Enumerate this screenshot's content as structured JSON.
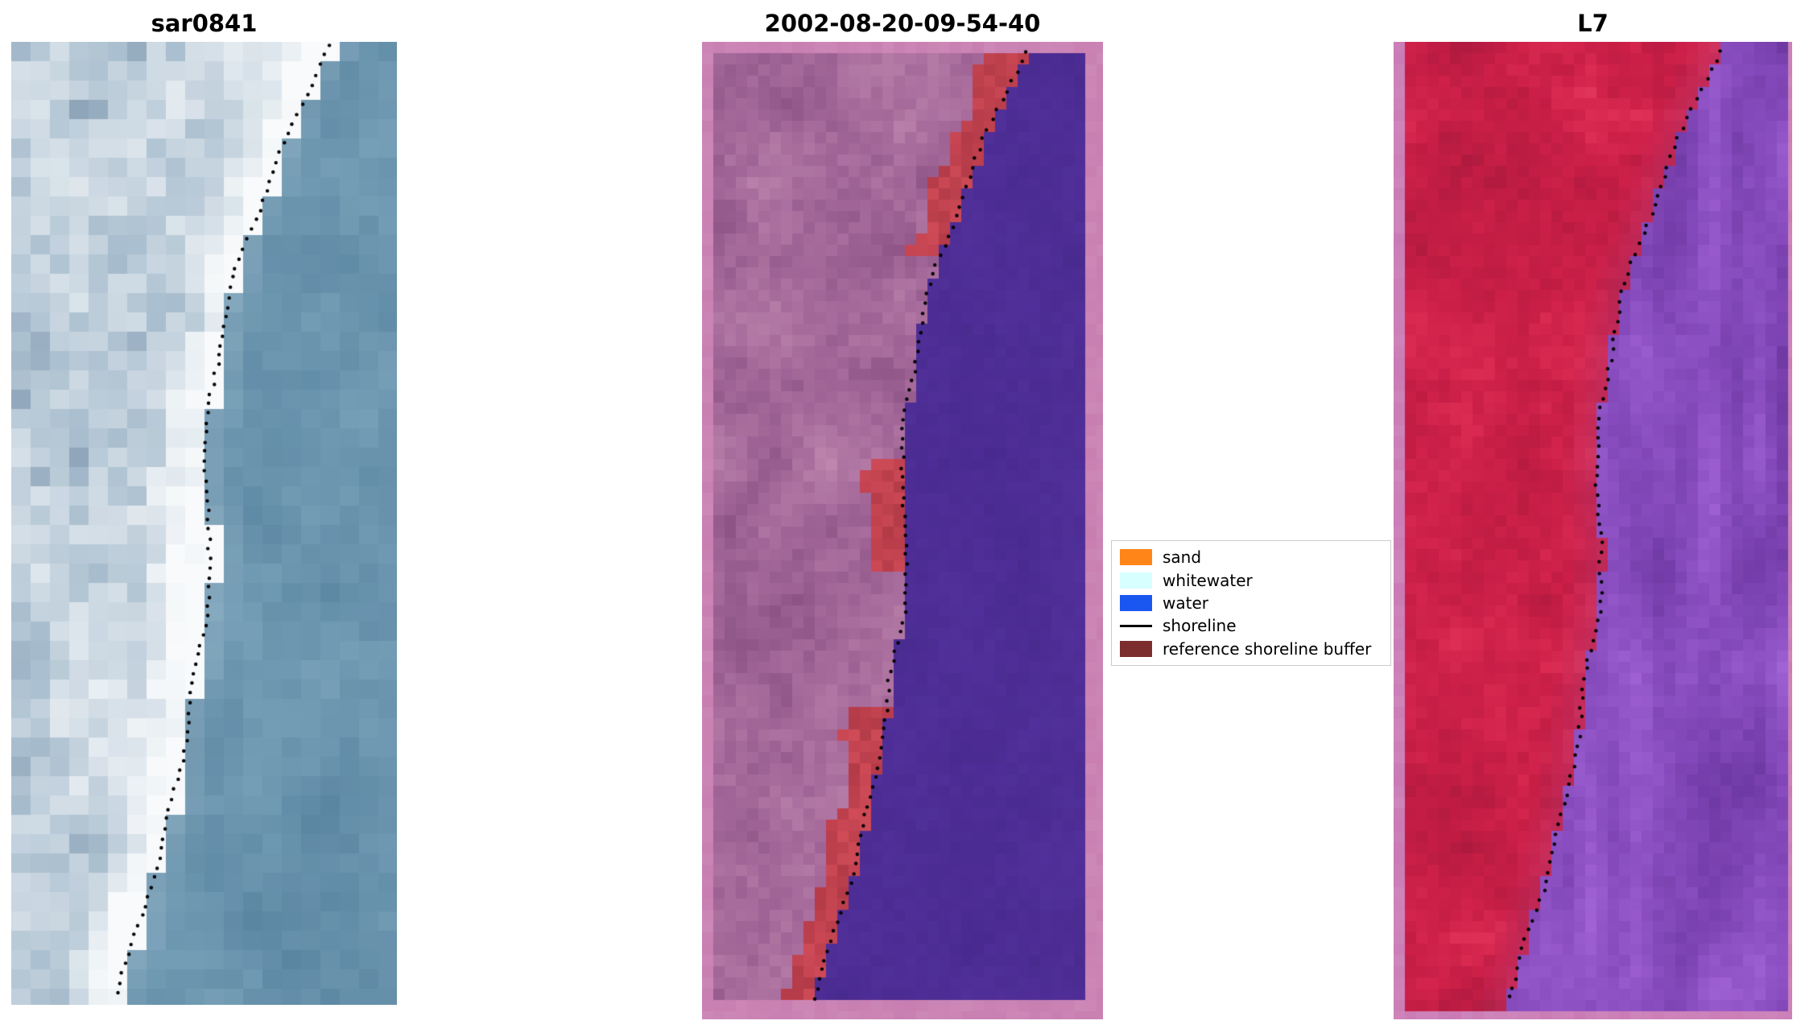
{
  "figure": {
    "background": "#ffffff",
    "panels": [
      {
        "title": "sar0841"
      },
      {
        "title": "2002-08-20-09-54-40"
      },
      {
        "title": "L7"
      }
    ],
    "legend": {
      "items": [
        {
          "label": "sand",
          "color": "#ff8519",
          "type": "patch"
        },
        {
          "label": "whitewater",
          "color": "#d8ffff",
          "type": "patch"
        },
        {
          "label": "water",
          "color": "#1a56f0",
          "type": "patch"
        },
        {
          "label": "shoreline",
          "color": "#000000",
          "type": "line"
        },
        {
          "label": "reference shoreline buffer",
          "color": "#7c2d2d",
          "type": "patch"
        }
      ]
    }
  },
  "chart_data": {
    "type": "heatmap",
    "subtype": "satellite-image-triptych",
    "title": "",
    "panels": [
      {
        "title": "sar0841",
        "content": "coastal SAR/optical image: bright surf and beach on the left, steel-blue ocean on the right, black dotted detected shoreline along the land/water boundary"
      },
      {
        "title": "2002-08-20-09-54-40",
        "content": "classified scene overlaid with mauve reference shoreline buffer: red sand detections hugging the shoreline, dark indigo water on the right, pink image border, black dotted detected shoreline"
      },
      {
        "title": "L7",
        "content": "Landsat 7 false-colour image: land rendered red, water rendered purple, pink image border, black dotted detected shoreline"
      }
    ],
    "legend": {
      "position": "center-right",
      "entries": [
        {
          "label": "sand",
          "color": "#ff8519",
          "marker": "patch"
        },
        {
          "label": "whitewater",
          "color": "#d8ffff",
          "marker": "patch"
        },
        {
          "label": "water",
          "color": "#1a56f0",
          "marker": "patch"
        },
        {
          "label": "shoreline",
          "color": "#000000",
          "marker": "line"
        },
        {
          "label": "reference shoreline buffer",
          "color": "#7c2d2d",
          "marker": "patch"
        }
      ]
    },
    "shoreline_path_norm": [
      [
        0.0,
        0.835
      ],
      [
        0.06,
        0.76
      ],
      [
        0.1,
        0.72
      ],
      [
        0.16,
        0.66
      ],
      [
        0.23,
        0.595
      ],
      [
        0.3,
        0.55
      ],
      [
        0.38,
        0.52
      ],
      [
        0.45,
        0.5
      ],
      [
        0.52,
        0.525
      ],
      [
        0.58,
        0.515
      ],
      [
        0.63,
        0.49
      ],
      [
        0.7,
        0.465
      ],
      [
        0.78,
        0.43
      ],
      [
        0.85,
        0.385
      ],
      [
        0.93,
        0.325
      ],
      [
        1.0,
        0.27
      ]
    ],
    "axes": "none (image panels, no ticks)"
  },
  "render": {
    "shore_path": [
      [
        0.0,
        0.835
      ],
      [
        0.06,
        0.76
      ],
      [
        0.1,
        0.72
      ],
      [
        0.16,
        0.66
      ],
      [
        0.23,
        0.595
      ],
      [
        0.3,
        0.55
      ],
      [
        0.38,
        0.52
      ],
      [
        0.45,
        0.5
      ],
      [
        0.52,
        0.525
      ],
      [
        0.58,
        0.515
      ],
      [
        0.63,
        0.49
      ],
      [
        0.7,
        0.465
      ],
      [
        0.78,
        0.43
      ],
      [
        0.85,
        0.385
      ],
      [
        0.93,
        0.325
      ],
      [
        1.0,
        0.27
      ]
    ],
    "dot": {
      "color": "#000000",
      "radius": 2.2,
      "step": 12
    },
    "panels": [
      {
        "id": "sar",
        "type": "sar",
        "seed": 9,
        "cell": 24,
        "shore_offset": -0.005,
        "frame": {
          "l": 0,
          "t": 0,
          "r": 0,
          "b": 0
        },
        "frame_color": "#ffffff",
        "land_palette": [
          "#f8fafb",
          "#e9eff3",
          "#cdd9e3",
          "#aabfcf",
          "#8aa0b5",
          "#70839b"
        ],
        "water_dark": "#5b86a2",
        "water_light": "#85adc3",
        "water_pale": "#c2d6e1"
      },
      {
        "id": "class",
        "type": "class",
        "seed": 31,
        "cell": 14,
        "shore_offset": 0,
        "frame": {
          "l": 8,
          "t": 8,
          "r": 16,
          "b": 18
        },
        "frame_color": "#c87eb1",
        "land_palette": [
          "#c189b1",
          "#b47aa6",
          "#a86c9c",
          "#9a5f91",
          "#8c5385"
        ],
        "water_dark": "#46298c",
        "water_light": "#5c36a8",
        "red_palette": [
          "#b23a47",
          "#c2424f",
          "#ce4b57"
        ],
        "red_ranges": [
          [
            0.0,
            0.215
          ],
          [
            0.425,
            0.545
          ],
          [
            0.69,
            1.0
          ]
        ],
        "red_width_base": 0.045,
        "red_width_var": 0.075
      },
      {
        "id": "l7",
        "type": "l7",
        "seed": 77,
        "cell": 14,
        "shore_offset": 0.005,
        "frame": {
          "l": 10,
          "t": 6,
          "r": 12,
          "b": 16
        },
        "frame_color": "#ca7bb5",
        "land_palette": [
          "#e83e60",
          "#da2a52",
          "#cd2049",
          "#bf1c43",
          "#ad1a3e"
        ],
        "water_palette": [
          "#a466d8",
          "#9356c9",
          "#8348b9",
          "#733ca8",
          "#653497"
        ],
        "transition_color": "#ad3a70"
      }
    ]
  }
}
